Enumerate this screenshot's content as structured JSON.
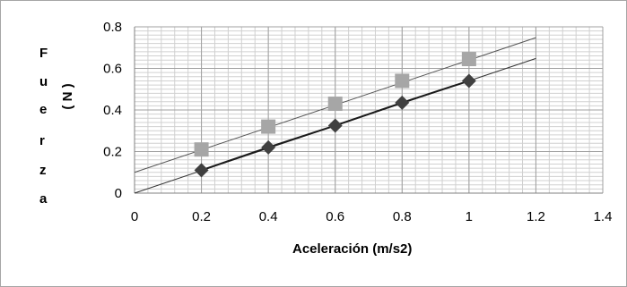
{
  "chart_data": {
    "type": "scatter",
    "xlabel": "Aceleración (m/s2)",
    "ylabel_letters": [
      "F",
      "u",
      "e",
      "r",
      "z",
      "a"
    ],
    "ylabel_unit": "( N )",
    "xlim": [
      0,
      1.4
    ],
    "ylim": [
      0,
      0.8
    ],
    "x_ticks": [
      "0",
      "0.2",
      "0.4",
      "0.6",
      "0.8",
      "1",
      "1.2",
      "1.4"
    ],
    "y_ticks": [
      "0",
      "0.2",
      "0.4",
      "0.6",
      "0.8"
    ],
    "grid": true,
    "series": [
      {
        "marker": "square",
        "color": "#a6a6a6",
        "x": [
          0.2,
          0.4,
          0.6,
          0.8,
          1.0
        ],
        "y": [
          0.21,
          0.32,
          0.43,
          0.54,
          0.645
        ],
        "trendline": {
          "slope": 0.54,
          "intercept": 0.1,
          "x_range": [
            0,
            1.2
          ],
          "color": "#555555"
        }
      },
      {
        "marker": "diamond",
        "color": "#404040",
        "x": [
          0.2,
          0.4,
          0.6,
          0.8,
          1.0
        ],
        "y": [
          0.11,
          0.22,
          0.325,
          0.435,
          0.54
        ],
        "trendline": {
          "slope": 0.54,
          "intercept": 0.0,
          "x_range": [
            0,
            1.2
          ],
          "color": "#333333"
        }
      }
    ]
  }
}
